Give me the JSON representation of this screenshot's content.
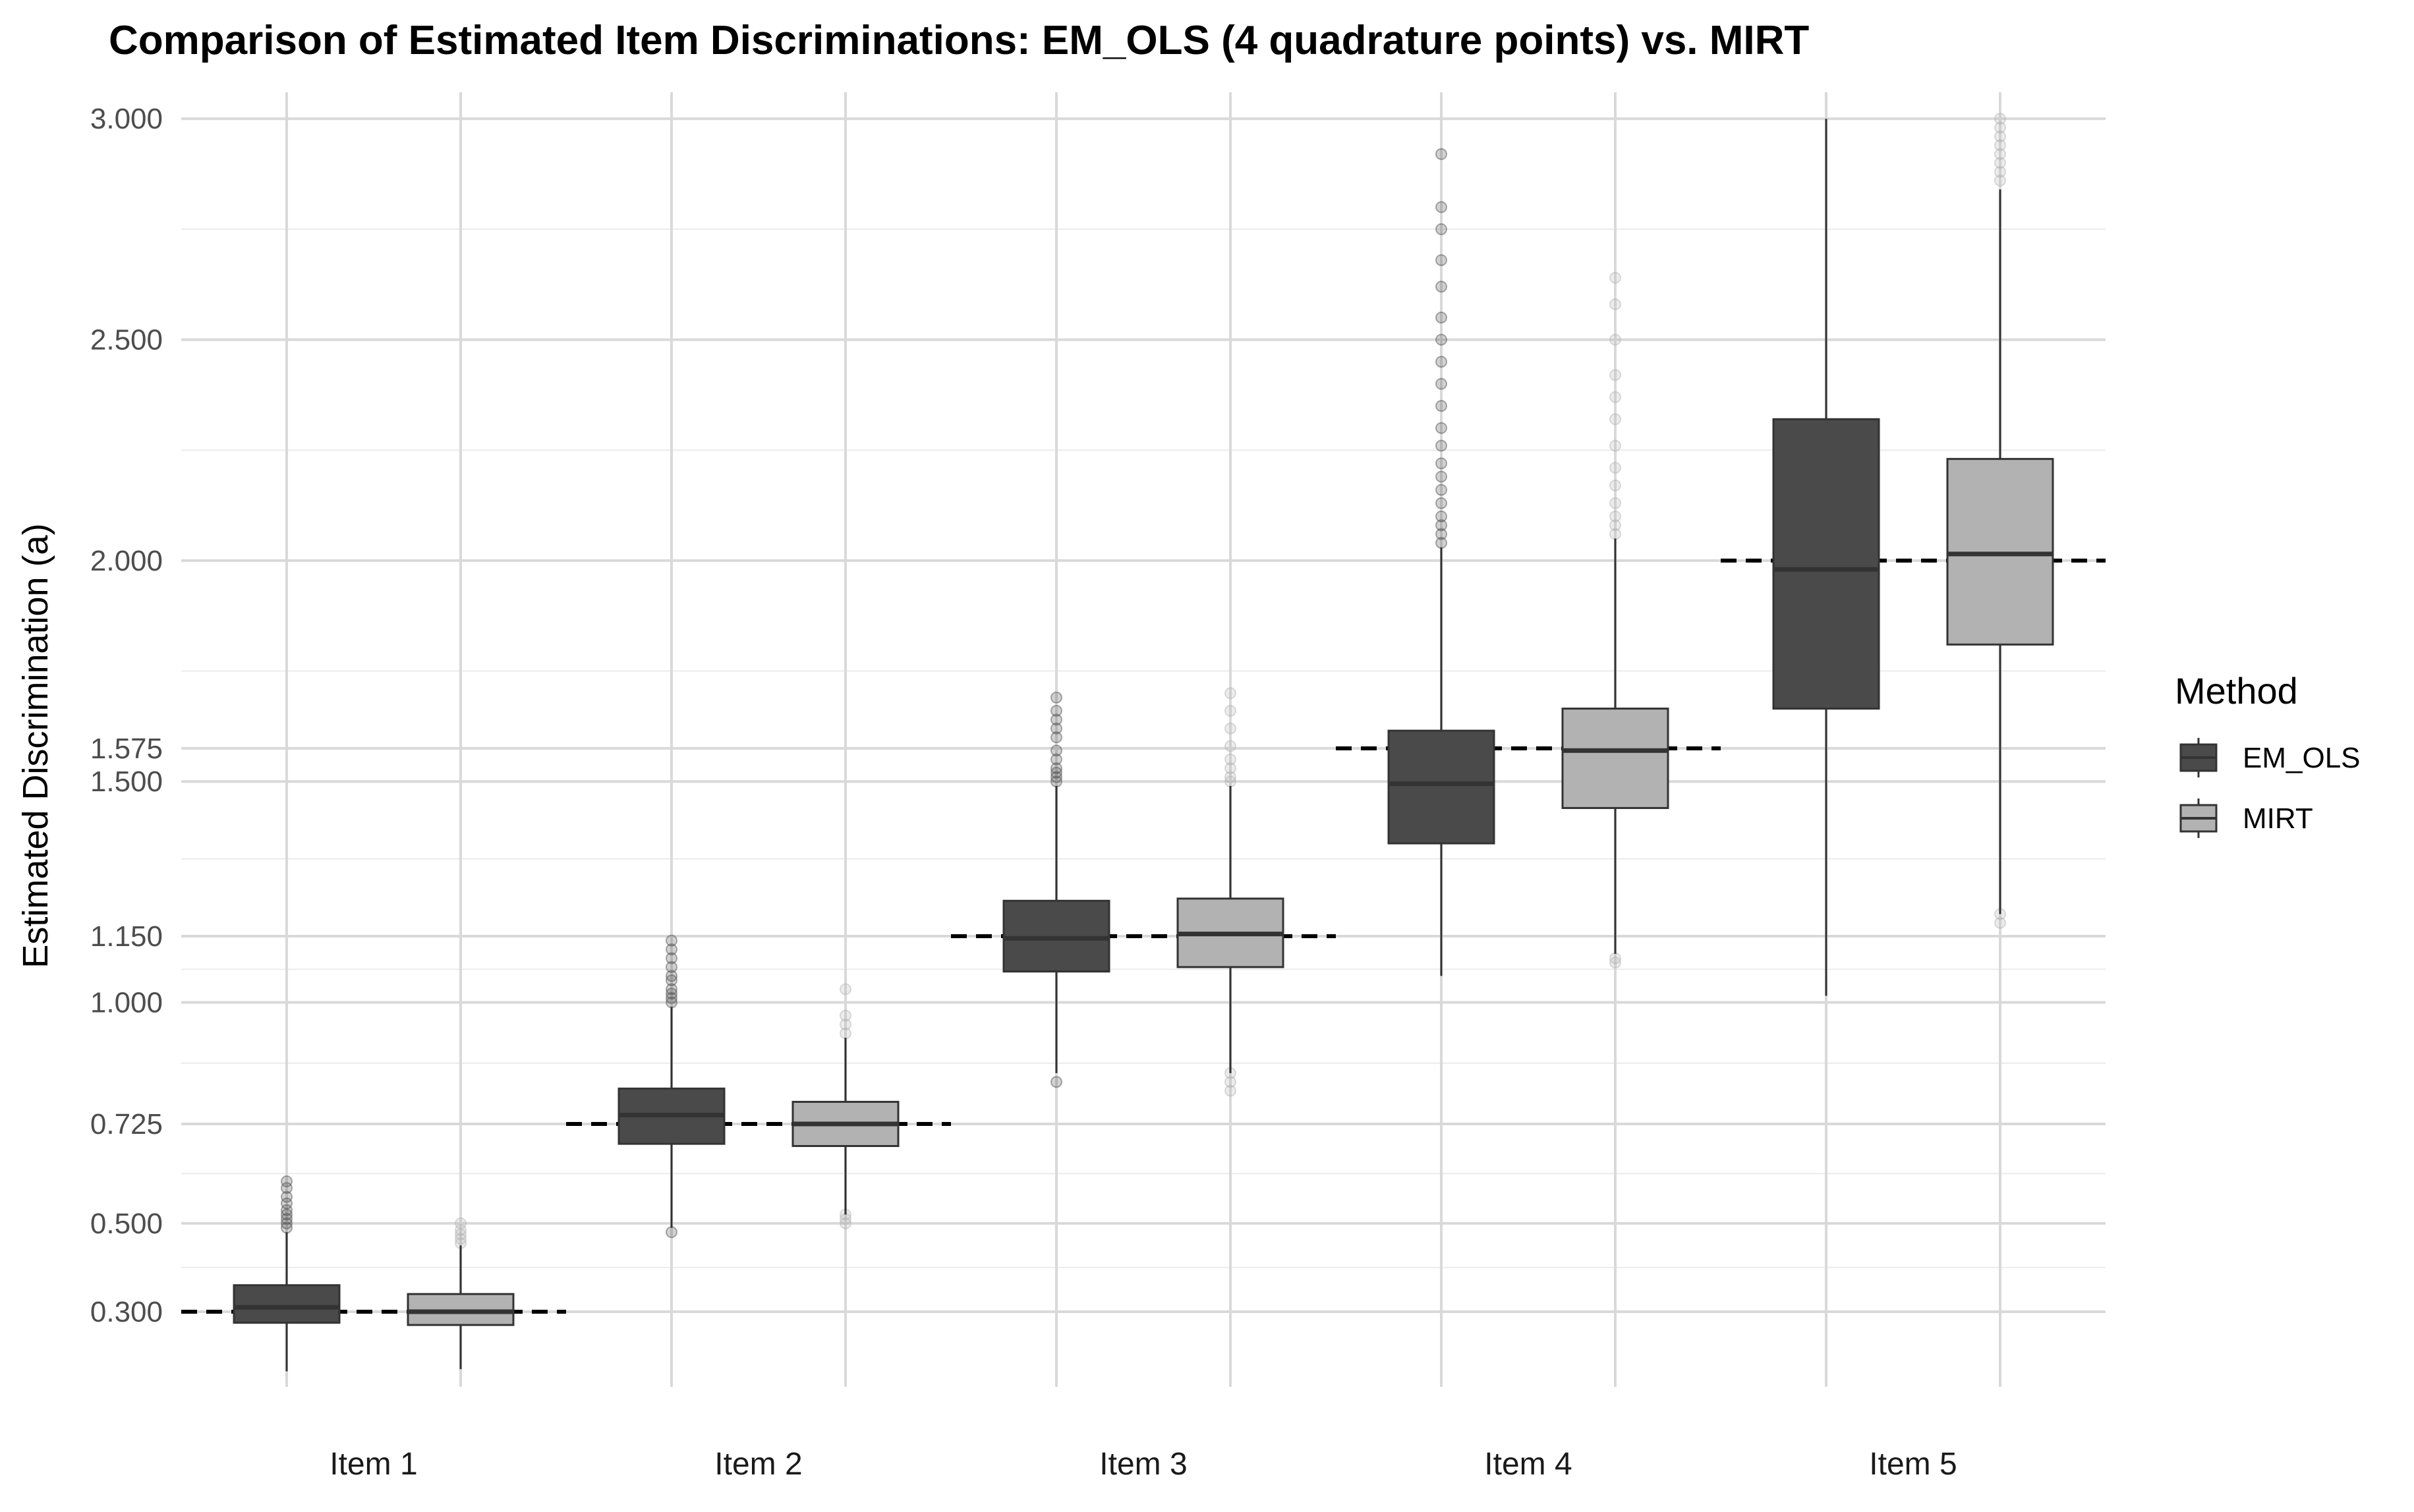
{
  "chart_data": {
    "type": "box",
    "title": "Comparison of Estimated Item Discriminations: EM_OLS (4 quadrature points) vs. MIRT",
    "xlabel": "",
    "ylabel": "Estimated Discrimination (a)",
    "categories": [
      "Item 1",
      "Item 2",
      "Item 3",
      "Item 4",
      "Item 5"
    ],
    "ylim": [
      0.13,
      3.06
    ],
    "y_ticks": [
      {
        "value": 0.3,
        "label": "0.300"
      },
      {
        "value": 0.5,
        "label": "0.500"
      },
      {
        "value": 0.725,
        "label": "0.725"
      },
      {
        "value": 1.0,
        "label": "1.000"
      },
      {
        "value": 1.15,
        "label": "1.150"
      },
      {
        "value": 1.5,
        "label": "1.500"
      },
      {
        "value": 1.575,
        "label": "1.575"
      },
      {
        "value": 2.0,
        "label": "2.000"
      },
      {
        "value": 2.5,
        "label": "2.500"
      },
      {
        "value": 3.0,
        "label": "3.000"
      }
    ],
    "minor_gridlines": [
      0.4,
      0.6125,
      0.8625,
      1.075,
      1.325,
      1.75,
      2.25,
      2.75
    ],
    "true_values": [
      0.3,
      0.725,
      1.15,
      1.575,
      2.0
    ],
    "legend": {
      "title": "Method",
      "position": "right"
    },
    "series": [
      {
        "name": "EM_OLS",
        "color": "#4a4a4a",
        "boxes": [
          {
            "min": 0.165,
            "q1": 0.275,
            "median": 0.31,
            "q3": 0.36,
            "max": 0.48,
            "outliers": [
              0.49,
              0.5,
              0.51,
              0.52,
              0.53,
              0.545,
              0.56,
              0.58,
              0.595
            ]
          },
          {
            "min": 0.49,
            "q1": 0.68,
            "median": 0.745,
            "q3": 0.805,
            "max": 0.99,
            "outliers": [
              0.48,
              1.0,
              1.01,
              1.02,
              1.03,
              1.05,
              1.06,
              1.08,
              1.1,
              1.12,
              1.14
            ]
          },
          {
            "min": 0.84,
            "q1": 1.07,
            "median": 1.145,
            "q3": 1.23,
            "max": 1.49,
            "outliers": [
              0.82,
              1.5,
              1.51,
              1.52,
              1.53,
              1.55,
              1.57,
              1.6,
              1.62,
              1.64,
              1.66,
              1.69
            ]
          },
          {
            "min": 1.06,
            "q1": 1.36,
            "median": 1.495,
            "q3": 1.615,
            "max": 2.03,
            "outliers": [
              2.04,
              2.06,
              2.08,
              2.1,
              2.13,
              2.16,
              2.19,
              2.22,
              2.26,
              2.3,
              2.35,
              2.4,
              2.45,
              2.5,
              2.55,
              2.62,
              2.68,
              2.75,
              2.8,
              2.92
            ]
          },
          {
            "min": 1.015,
            "q1": 1.665,
            "median": 1.98,
            "q3": 2.32,
            "max": 3.0,
            "outliers": []
          }
        ]
      },
      {
        "name": "MIRT",
        "color": "#b2b2b2",
        "boxes": [
          {
            "min": 0.17,
            "q1": 0.27,
            "median": 0.3,
            "q3": 0.34,
            "max": 0.45,
            "outliers": [
              0.455,
              0.465,
              0.475,
              0.485,
              0.5
            ]
          },
          {
            "min": 0.52,
            "q1": 0.675,
            "median": 0.725,
            "q3": 0.775,
            "max": 0.92,
            "outliers": [
              0.5,
              0.51,
              0.52,
              0.93,
              0.95,
              0.97,
              1.03
            ]
          },
          {
            "min": 0.84,
            "q1": 1.08,
            "median": 1.155,
            "q3": 1.235,
            "max": 1.49,
            "outliers": [
              0.8,
              0.82,
              0.84,
              1.5,
              1.51,
              1.53,
              1.55,
              1.58,
              1.62,
              1.66,
              1.7
            ]
          },
          {
            "min": 1.11,
            "q1": 1.44,
            "median": 1.57,
            "q3": 1.665,
            "max": 2.05,
            "outliers": [
              1.09,
              1.1,
              2.06,
              2.08,
              2.1,
              2.13,
              2.17,
              2.21,
              2.26,
              2.32,
              2.37,
              2.42,
              2.5,
              2.58,
              2.64
            ]
          },
          {
            "min": 1.2,
            "q1": 1.81,
            "median": 2.015,
            "q3": 2.23,
            "max": 2.84,
            "outliers": [
              1.18,
              1.2,
              2.86,
              2.88,
              2.9,
              2.92,
              2.94,
              2.96,
              2.98,
              3.0
            ]
          }
        ]
      }
    ]
  }
}
